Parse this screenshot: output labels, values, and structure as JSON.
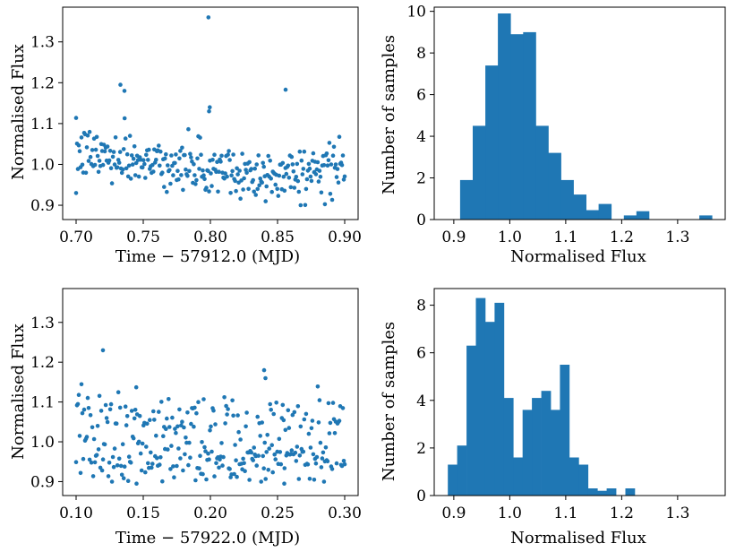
{
  "colors": {
    "marker": "#1f77b4",
    "bar": "#1f77b4",
    "axis": "#000000",
    "background": "#ffffff"
  },
  "chart_data": [
    {
      "type": "scatter",
      "title": "",
      "xlabel": "Time − 57912.0 (MJD)",
      "ylabel": "Normalised Flux",
      "xlim": [
        0.69,
        0.91
      ],
      "ylim": [
        0.865,
        1.385
      ],
      "xticks": [
        0.7,
        0.75,
        0.8,
        0.85,
        0.9
      ],
      "xticklabels": [
        "0.70",
        "0.75",
        "0.80",
        "0.85",
        "0.90"
      ],
      "yticks": [
        0.9,
        1.0,
        1.1,
        1.2,
        1.3
      ],
      "yticklabels": [
        "0.9",
        "1.0",
        "1.1",
        "1.2",
        "1.3"
      ],
      "x_range": [
        0.7,
        0.9
      ],
      "n_points": 300,
      "notable_points": [
        {
          "x": 0.7985,
          "y": 1.36
        },
        {
          "x": 0.733,
          "y": 1.195
        },
        {
          "x": 0.736,
          "y": 1.18
        },
        {
          "x": 0.856,
          "y": 1.183
        },
        {
          "x": 0.7995,
          "y": 1.14
        },
        {
          "x": 0.799,
          "y": 1.13
        },
        {
          "x": 0.7,
          "y": 0.93
        }
      ]
    },
    {
      "type": "bar",
      "title": "",
      "xlabel": "Normalised Flux",
      "ylabel": "Number of samples",
      "xlim": [
        0.865,
        1.385
      ],
      "ylim": [
        0,
        10.2
      ],
      "xticks": [
        0.9,
        1.0,
        1.1,
        1.2,
        1.3
      ],
      "xticklabels": [
        "0.9",
        "1.0",
        "1.1",
        "1.2",
        "1.3"
      ],
      "yticks": [
        0,
        2,
        4,
        6,
        8,
        10
      ],
      "yticklabels": [
        "0",
        "2",
        "4",
        "6",
        "8",
        "10"
      ],
      "bin_edges": [
        0.9113,
        0.9338,
        0.9563,
        0.9788,
        1.0013,
        1.0238,
        1.0463,
        1.0688,
        1.0913,
        1.1138,
        1.1363,
        1.1588,
        1.1813,
        1.2038,
        1.2263,
        1.2488,
        1.2713,
        1.2938,
        1.3163,
        1.3388,
        1.3613
      ],
      "values": [
        1.9,
        4.5,
        7.4,
        9.9,
        8.9,
        9.0,
        4.5,
        3.2,
        1.9,
        1.2,
        0.45,
        0.75,
        0,
        0.2,
        0.4,
        0,
        0,
        0,
        0,
        0.2
      ]
    },
    {
      "type": "scatter",
      "title": "",
      "xlabel": "Time − 57922.0 (MJD)",
      "ylabel": "Normalised Flux",
      "xlim": [
        0.09,
        0.31
      ],
      "ylim": [
        0.865,
        1.385
      ],
      "xticks": [
        0.1,
        0.15,
        0.2,
        0.25,
        0.3
      ],
      "xticklabels": [
        "0.10",
        "0.15",
        "0.20",
        "0.25",
        "0.30"
      ],
      "yticks": [
        0.9,
        1.0,
        1.1,
        1.2,
        1.3
      ],
      "yticklabels": [
        "0.9",
        "1.0",
        "1.1",
        "1.2",
        "1.3"
      ],
      "x_range": [
        0.1,
        0.3
      ],
      "n_points": 300,
      "notable_points": [
        {
          "x": 0.12,
          "y": 1.23
        },
        {
          "x": 0.24,
          "y": 1.18
        },
        {
          "x": 0.241,
          "y": 1.16
        },
        {
          "x": 0.145,
          "y": 0.895
        },
        {
          "x": 0.255,
          "y": 0.895
        }
      ]
    },
    {
      "type": "bar",
      "title": "",
      "xlabel": "Normalised Flux",
      "ylabel": "Number of samples",
      "xlim": [
        0.865,
        1.385
      ],
      "ylim": [
        0,
        8.7
      ],
      "xticks": [
        0.9,
        1.0,
        1.1,
        1.2,
        1.3
      ],
      "xticklabels": [
        "0.9",
        "1.0",
        "1.1",
        "1.2",
        "1.3"
      ],
      "yticks": [
        0,
        2,
        4,
        6,
        8
      ],
      "yticklabels": [
        "0",
        "2",
        "4",
        "6",
        "8"
      ],
      "bin_edges": [
        0.8893,
        0.906,
        0.9227,
        0.9394,
        0.9561,
        0.9728,
        0.9895,
        1.0062,
        1.0229,
        1.0396,
        1.0563,
        1.073,
        1.0897,
        1.1064,
        1.1231,
        1.1398,
        1.1565,
        1.1732,
        1.1899,
        1.2066,
        1.2233
      ],
      "values": [
        1.3,
        2.1,
        6.3,
        8.3,
        7.3,
        8.1,
        4.1,
        1.6,
        3.6,
        4.1,
        4.4,
        3.6,
        5.5,
        1.6,
        1.3,
        0.3,
        0.2,
        0.3,
        0,
        0.3
      ]
    }
  ]
}
